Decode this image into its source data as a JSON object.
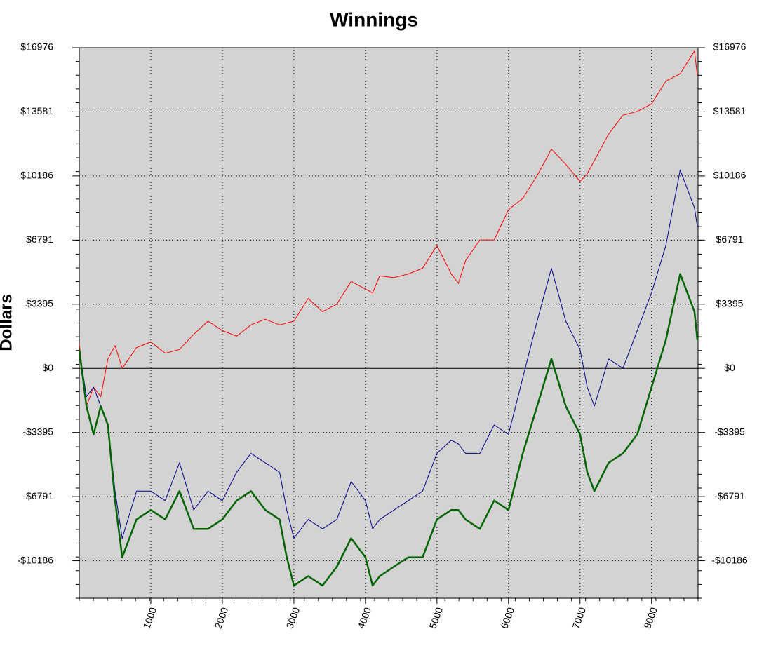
{
  "chart_data": {
    "type": "line",
    "title": "Winnings",
    "y_label": "Dollars",
    "x": [
      0,
      100,
      200,
      300,
      400,
      500,
      600,
      800,
      1000,
      1200,
      1400,
      1600,
      1800,
      2000,
      2200,
      2400,
      2600,
      2800,
      2900,
      3000,
      3200,
      3400,
      3600,
      3800,
      4000,
      4100,
      4200,
      4400,
      4600,
      4800,
      5000,
      5200,
      5300,
      5400,
      5600,
      5800,
      6000,
      6200,
      6400,
      6600,
      6800,
      7000,
      7100,
      7200,
      7400,
      7600,
      7800,
      8000,
      8200,
      8400,
      8600,
      8640
    ],
    "series": [
      {
        "color": "#ff0000",
        "width": 1,
        "values": [
          1300,
          -2000,
          -1000,
          -1500,
          500,
          1200,
          0,
          1100,
          1400,
          800,
          1000,
          1800,
          2500,
          2000,
          1700,
          2300,
          2600,
          2300,
          2400,
          2500,
          3700,
          3000,
          3400,
          4600,
          4200,
          4000,
          4900,
          4800,
          5000,
          5300,
          6500,
          5000,
          4500,
          5700,
          6800,
          6800,
          8400,
          9000,
          10200,
          11600,
          10800,
          9900,
          10300,
          11000,
          12400,
          13400,
          13600,
          14000,
          15200,
          15600,
          16800,
          15500
        ]
      },
      {
        "color": "#00008b",
        "width": 1,
        "values": [
          1000,
          -1500,
          -1000,
          -2000,
          -3000,
          -6500,
          -9000,
          -6500,
          -6500,
          -7000,
          -5000,
          -7500,
          -6500,
          -7000,
          -5500,
          -4500,
          -5000,
          -5500,
          -7500,
          -9000,
          -8000,
          -8500,
          -8000,
          -6000,
          -7000,
          -8500,
          -8000,
          -7500,
          -7000,
          -6500,
          -4500,
          -3800,
          -4000,
          -4500,
          -4500,
          -3000,
          -3500,
          -500,
          2500,
          5300,
          2500,
          1000,
          -1000,
          -2000,
          500,
          0,
          2000,
          4000,
          6500,
          10500,
          8500,
          7500
        ]
      },
      {
        "color": "#006400",
        "width": 2.5,
        "values": [
          1000,
          -2000,
          -3500,
          -2000,
          -3000,
          -7000,
          -10000,
          -8000,
          -7500,
          -8000,
          -6500,
          -8500,
          -8500,
          -8000,
          -7000,
          -6500,
          -7500,
          -8000,
          -10000,
          -11500,
          -11000,
          -11500,
          -10500,
          -9000,
          -10000,
          -11500,
          -11000,
          -10500,
          -10000,
          -10000,
          -8000,
          -7500,
          -7500,
          -8000,
          -8500,
          -7000,
          -7500,
          -4500,
          -2000,
          500,
          -2000,
          -3500,
          -5500,
          -6500,
          -5000,
          -4500,
          -3500,
          -1000,
          1500,
          5000,
          3000,
          1500
        ]
      }
    ],
    "xlim": [
      0,
      8650
    ],
    "xticks": [
      1000,
      2000,
      3000,
      4000,
      5000,
      6000,
      7000,
      8000
    ],
    "ylim": [
      -12170,
      16976
    ],
    "yticks": [
      {
        "value": -10186,
        "label": "-$10186"
      },
      {
        "value": -6791,
        "label": "-$6791"
      },
      {
        "value": -3395,
        "label": "-$3395"
      },
      {
        "value": 0,
        "label": "$0"
      },
      {
        "value": 3395,
        "label": "$3395"
      },
      {
        "value": 6791,
        "label": "$6791"
      },
      {
        "value": 10186,
        "label": "$10186"
      },
      {
        "value": 13581,
        "label": "$13581"
      },
      {
        "value": 16976,
        "label": "$16976"
      }
    ],
    "grid": true
  }
}
